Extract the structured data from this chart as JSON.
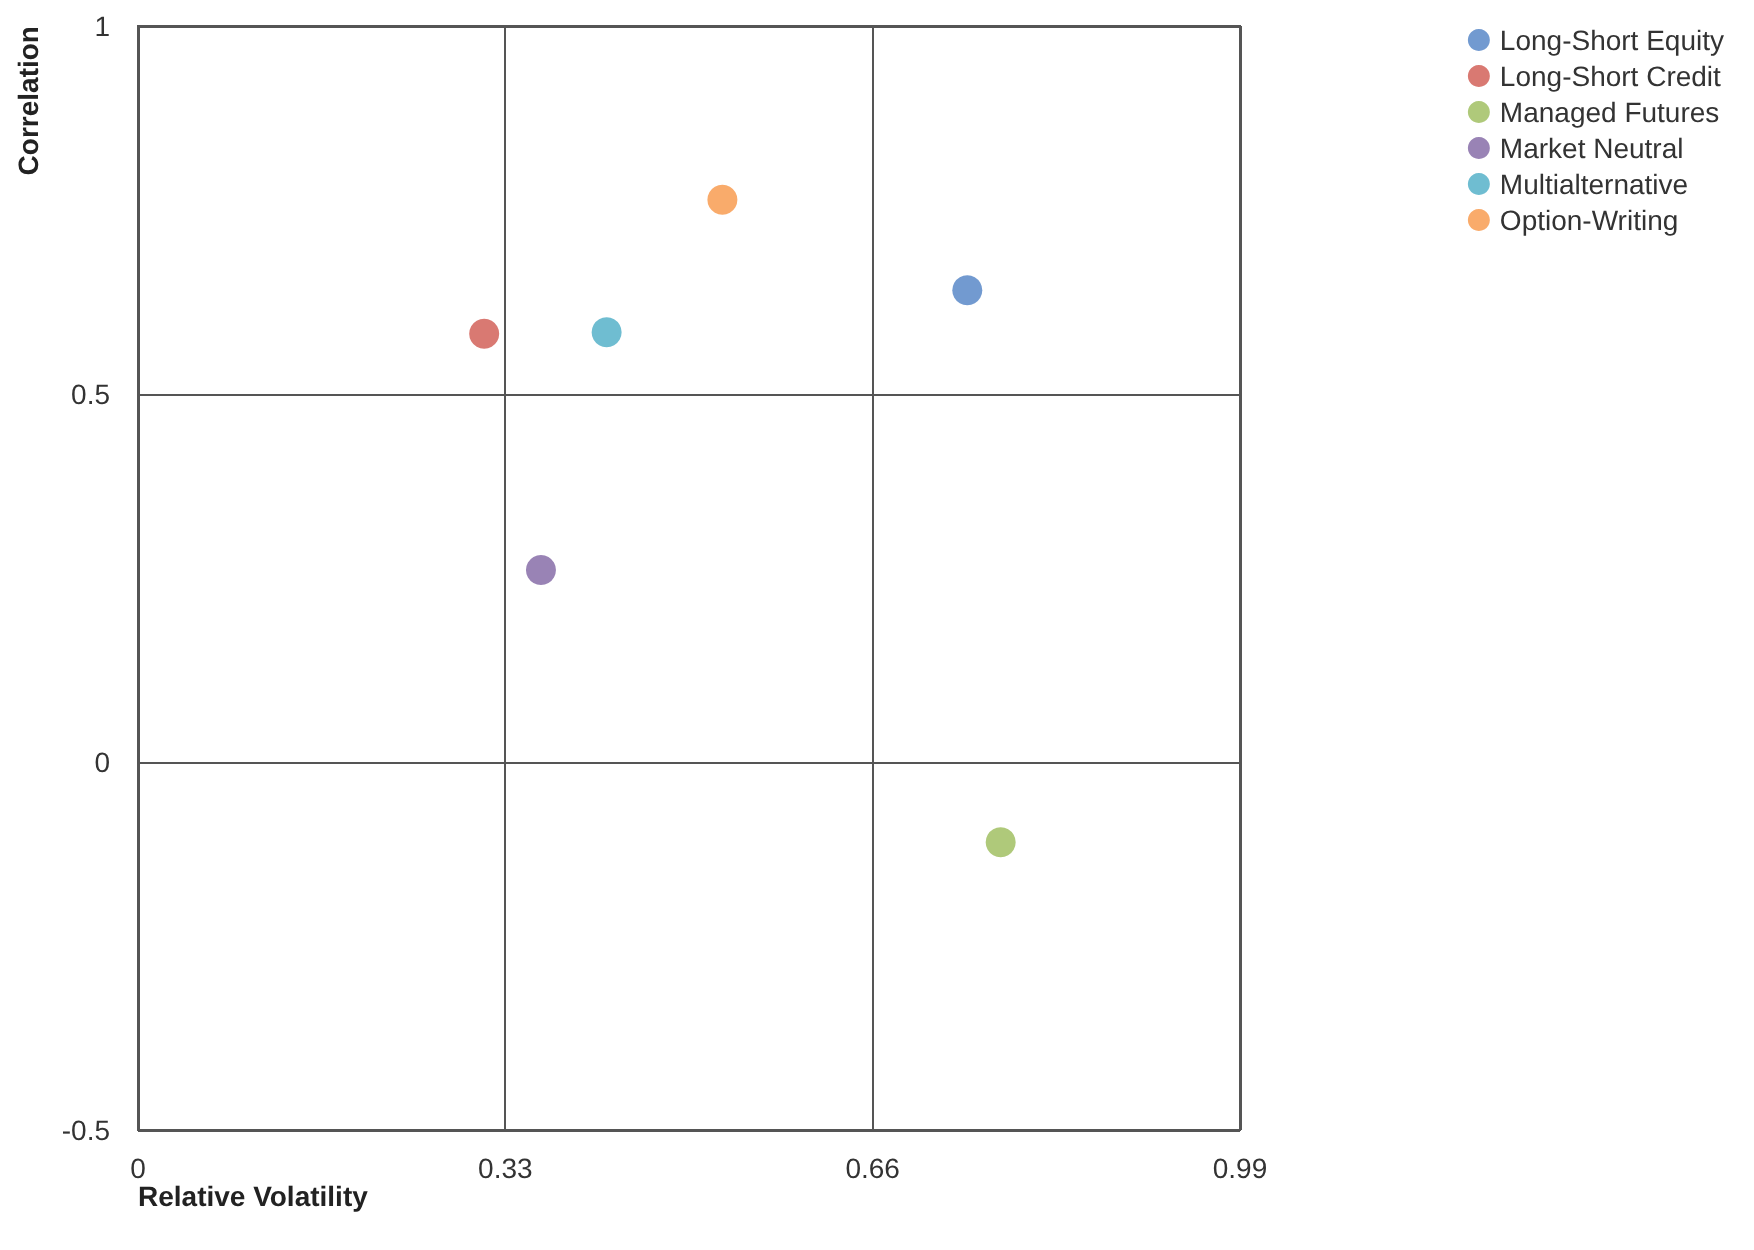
{
  "chart_data": {
    "type": "scatter",
    "xlabel": "Relative Volatility",
    "ylabel": "Correlation",
    "xlim": [
      0,
      0.99
    ],
    "xticks": [
      0,
      0.33,
      0.66,
      0.99
    ],
    "ylim": [
      -0.5,
      1
    ],
    "yticks": [
      -0.5,
      0,
      0.5,
      1
    ],
    "grid": true,
    "legend": "top right",
    "marker": "circle",
    "series": [
      {
        "name": "Long-Short Equity",
        "color": "#4f81c4",
        "x": [
          0.745
        ],
        "values": [
          0.641
        ]
      },
      {
        "name": "Long-Short Credit",
        "color": "#d0584f",
        "x": [
          0.311
        ],
        "values": [
          0.582
        ]
      },
      {
        "name": "Managed Futures",
        "color": "#9bbb59",
        "x": [
          0.775
        ],
        "values": [
          -0.109
        ]
      },
      {
        "name": "Market Neutral",
        "color": "#8064a2",
        "x": [
          0.362
        ],
        "values": [
          0.261
        ]
      },
      {
        "name": "Multialternative",
        "color": "#4bacc6",
        "x": [
          0.421
        ],
        "values": [
          0.584
        ]
      },
      {
        "name": "Option-Writing",
        "color": "#f79646",
        "x": [
          0.525
        ],
        "values": [
          0.764
        ]
      }
    ]
  }
}
